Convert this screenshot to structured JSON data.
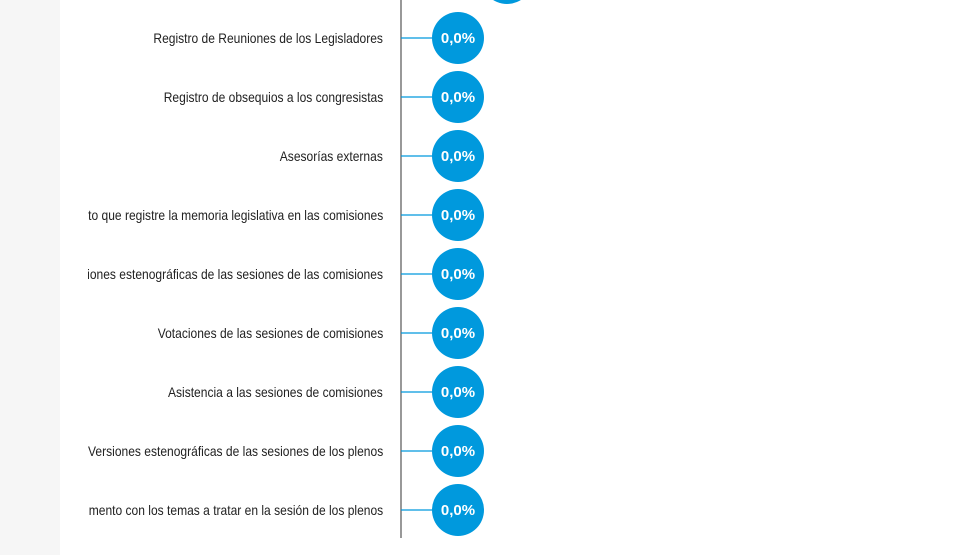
{
  "chart_data": {
    "type": "dot",
    "categories": [
      "Registro de Reuniones de los Legisladores",
      "Registro de obsequios a los congresistas",
      "Asesorías externas",
      "ito que registre la memoria legislativa en las comisiones",
      "siones estenográficas de las sesiones de las comisiones",
      "Votaciones de las sesiones de comisiones",
      "Asistencia a las sesiones de comisiones",
      "Versiones estenográficas de las sesiones de los plenos",
      "umento con los temas a tratar en la sesión de los plenos"
    ],
    "values": [
      0,
      0,
      0,
      0,
      0,
      0,
      0,
      0,
      0
    ],
    "value_labels": [
      "0,0%",
      "0,0%",
      "0,0%",
      "0,0%",
      "0,0%",
      "0,0%",
      "0,0%",
      "0,0%",
      "0,0%"
    ],
    "unit": "%",
    "colors": {
      "bubble": "#0099dd",
      "connector": "#0099dd",
      "axis": "#555555",
      "label": "#222222"
    }
  }
}
